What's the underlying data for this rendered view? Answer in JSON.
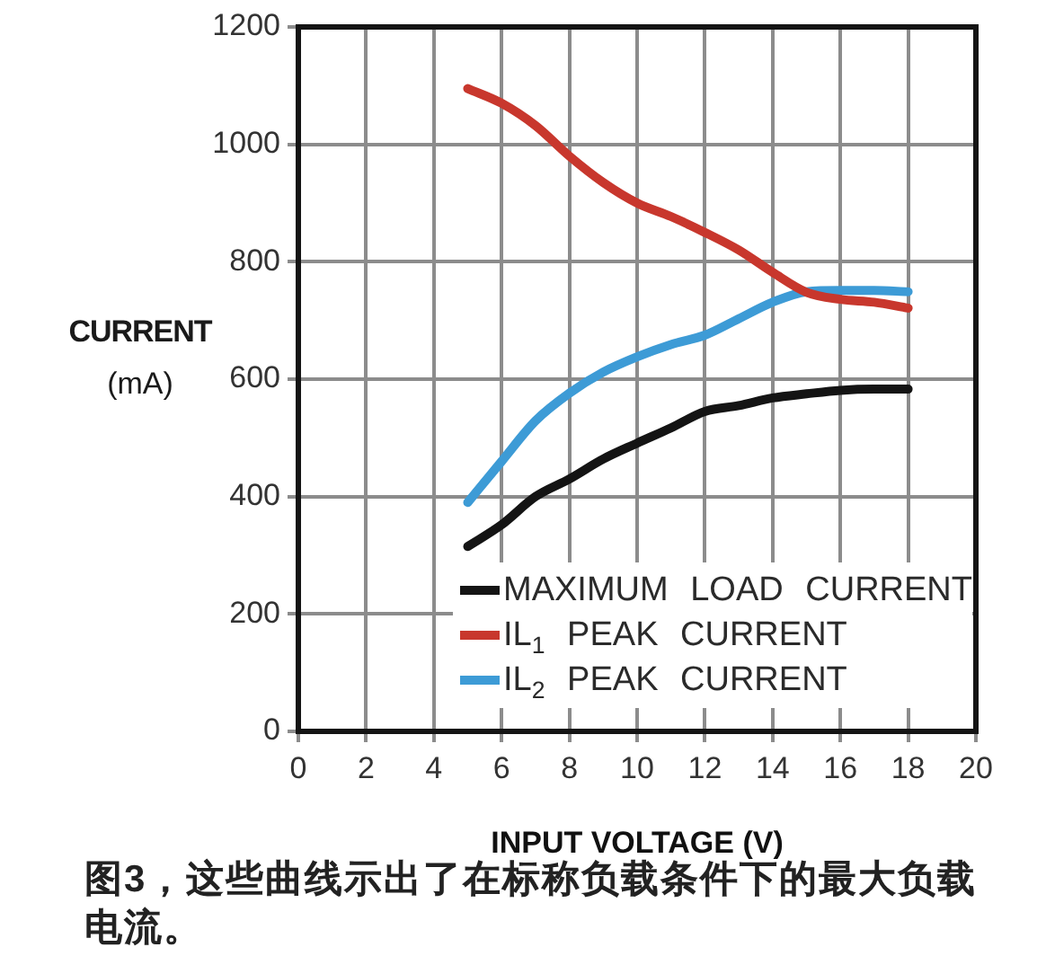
{
  "chart_data": {
    "type": "line",
    "xlabel": "INPUT VOLTAGE (V)",
    "ylabel": "CURRENT\n(mA)",
    "x": [
      5,
      6,
      7,
      8,
      9,
      10,
      11,
      12,
      13,
      14,
      15,
      16,
      17,
      18
    ],
    "series": [
      {
        "name": "MAXIMUM LOAD CURRENT",
        "color": "#141414",
        "values": [
          315,
          352,
          400,
          430,
          464,
          491,
          517,
          545,
          555,
          568,
          575,
          581,
          583,
          583
        ]
      },
      {
        "name": "IL$_{1}$ PEAK CURRENT",
        "color": "#c8372d",
        "values": [
          1095,
          1070,
          1032,
          980,
          935,
          900,
          877,
          850,
          820,
          782,
          748,
          736,
          731,
          721
        ]
      },
      {
        "name": "IL$_{2}$ PEAK CURRENT",
        "color": "#3d9bd6",
        "values": [
          390,
          460,
          529,
          576,
          612,
          638,
          659,
          675,
          703,
          731,
          749,
          751,
          751,
          749
        ]
      }
    ],
    "xlim": [
      0,
      20
    ],
    "xticks": [
      0,
      2,
      4,
      6,
      8,
      10,
      12,
      14,
      16,
      18,
      20
    ],
    "ylim": [
      0,
      1200
    ],
    "yticks": [
      0,
      200,
      400,
      600,
      800,
      1000,
      1200
    ],
    "grid": true,
    "legend": "bottom right",
    "marker": "none",
    "line_style": "solid",
    "annotations": [
      "图3，这些曲线示出了在标称负载条件下的最大负载电流。"
    ]
  }
}
